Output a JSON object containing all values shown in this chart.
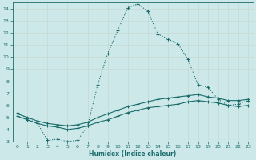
{
  "xlabel": "Humidex (Indice chaleur)",
  "bg_color": "#cde8e8",
  "grid_color": "#b0d4d4",
  "line_color": "#1a6b6b",
  "xlim": [
    -0.5,
    23.5
  ],
  "ylim": [
    3,
    14.5
  ],
  "xticks": [
    0,
    1,
    2,
    3,
    4,
    5,
    6,
    7,
    8,
    9,
    10,
    11,
    12,
    13,
    14,
    15,
    16,
    17,
    18,
    19,
    20,
    21,
    22,
    23
  ],
  "yticks": [
    3,
    4,
    5,
    6,
    7,
    8,
    9,
    10,
    11,
    12,
    13,
    14
  ],
  "line1_x": [
    0,
    1,
    2,
    3,
    4,
    5,
    6,
    7,
    8,
    9,
    10,
    11,
    12,
    13,
    14,
    15,
    16,
    17,
    18,
    19,
    20,
    21,
    22,
    23
  ],
  "line1_y": [
    5.4,
    4.9,
    4.5,
    3.1,
    3.2,
    3.0,
    3.1,
    4.3,
    7.7,
    10.3,
    12.2,
    14.1,
    14.4,
    13.8,
    11.9,
    11.5,
    11.1,
    9.8,
    7.7,
    7.5,
    6.5,
    6.0,
    6.1,
    6.4
  ],
  "line2_x": [
    0,
    1,
    2,
    3,
    4,
    5,
    6,
    7,
    8,
    9,
    10,
    11,
    12,
    13,
    14,
    15,
    16,
    17,
    18,
    19,
    20,
    21,
    22,
    23
  ],
  "line2_y": [
    5.3,
    5.0,
    4.7,
    4.5,
    4.4,
    4.3,
    4.4,
    4.6,
    5.0,
    5.3,
    5.6,
    5.9,
    6.1,
    6.3,
    6.5,
    6.6,
    6.7,
    6.8,
    6.9,
    6.7,
    6.6,
    6.4,
    6.4,
    6.5
  ],
  "line3_x": [
    0,
    1,
    2,
    3,
    4,
    5,
    6,
    7,
    8,
    9,
    10,
    11,
    12,
    13,
    14,
    15,
    16,
    17,
    18,
    19,
    20,
    21,
    22,
    23
  ],
  "line3_y": [
    5.1,
    4.8,
    4.5,
    4.3,
    4.2,
    4.0,
    4.1,
    4.3,
    4.6,
    4.8,
    5.1,
    5.4,
    5.6,
    5.8,
    5.9,
    6.0,
    6.1,
    6.3,
    6.4,
    6.3,
    6.2,
    6.0,
    5.9,
    6.0
  ]
}
